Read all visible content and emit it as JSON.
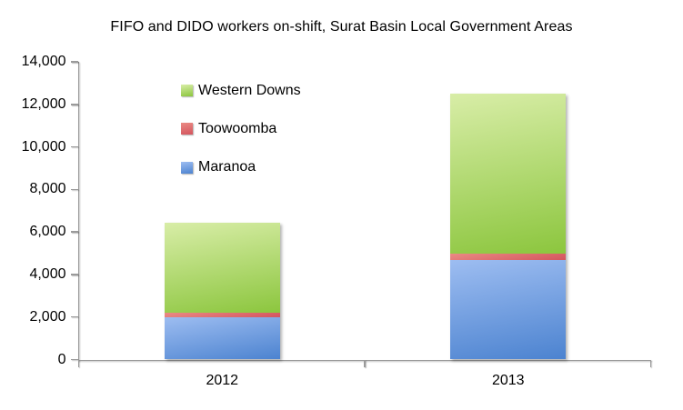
{
  "title": "FIFO and DIDO workers on-shift, Surat Basin Local Government Areas",
  "chart_data": {
    "type": "bar",
    "stacked": true,
    "title": "FIFO and DIDO workers on-shift, Surat Basin Local Government Areas",
    "categories": [
      "2012",
      "2013"
    ],
    "series": [
      {
        "name": "Maranoa",
        "values": [
          2000,
          4700
        ],
        "color_top": "#9dbdf1",
        "color_bottom": "#4c83d0"
      },
      {
        "name": "Toowoomba",
        "values": [
          200,
          300
        ],
        "color_top": "#ea8a84",
        "color_bottom": "#d4555e"
      },
      {
        "name": "Western Downs",
        "values": [
          4250,
          7500
        ],
        "color_top": "#d8eda7",
        "color_bottom": "#8cc63e"
      }
    ],
    "legend": [
      {
        "label": "Western Downs",
        "series": "Western Downs"
      },
      {
        "label": "Toowoomba",
        "series": "Toowoomba"
      },
      {
        "label": "Maranoa",
        "series": "Maranoa"
      }
    ],
    "legend_position": "inside-upper-left",
    "ylim": [
      0,
      14000
    ],
    "ytick_step": 2000,
    "ytick_labels": [
      "0",
      "2,000",
      "4,000",
      "6,000",
      "8,000",
      "10,000",
      "12,000",
      "14,000"
    ],
    "grid": false,
    "axis_color": "#9a9a9a",
    "text_color": "#000000",
    "background_color": "#ffffff"
  }
}
